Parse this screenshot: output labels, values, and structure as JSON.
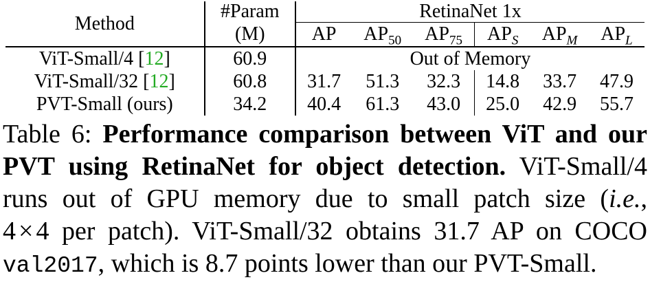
{
  "table": {
    "header": {
      "method": "Method",
      "param_line1": "#Param",
      "param_line2": "(M)",
      "group": "RetinaNet 1x",
      "ap": "AP",
      "ap50_base": "AP",
      "ap50_sub": "50",
      "ap75_base": "AP",
      "ap75_sub": "75",
      "aps_base": "AP",
      "aps_sub": "S",
      "apm_base": "AP",
      "apm_sub": "M",
      "apl_base": "AP",
      "apl_sub": "L"
    },
    "rows": [
      {
        "method": "ViT-Small/4 ",
        "cite": "12",
        "cite_open": "[",
        "cite_close": "]",
        "param": "60.9",
        "merged": "Out of Memory"
      },
      {
        "method": "ViT-Small/32 ",
        "cite": "12",
        "cite_open": "[",
        "cite_close": "]",
        "param": "60.8",
        "ap": "31.7",
        "ap50": "51.3",
        "ap75": "32.3",
        "aps": "14.8",
        "apm": "33.7",
        "apl": "47.9"
      },
      {
        "method": "PVT-Small (ours)",
        "param": "34.2",
        "ap": "40.4",
        "ap50": "61.3",
        "ap75": "43.0",
        "aps": "25.0",
        "apm": "42.9",
        "apl": "55.7"
      }
    ],
    "colors": {
      "citation": "#22aa22"
    }
  },
  "caption": {
    "label": "Table 6: ",
    "bold_a": "Performance comparison between ViT and our",
    "bold_b": "PVT using RetinaNet for object detection.",
    "text_b": " ViT-Small/4",
    "text_c1": "runs out of GPU memory due to small patch size (",
    "italic_ie": "i.e.",
    "text_c2": ",",
    "text_d1": "4",
    "text_d_times": "×",
    "text_d2": "4",
    "text_d3": " per patch). ViT-Small/32 obtains 31.7 AP on COCO",
    "mono_val": "val2017",
    "text_e": ", which is 8.7 points lower than our PVT-Small."
  }
}
